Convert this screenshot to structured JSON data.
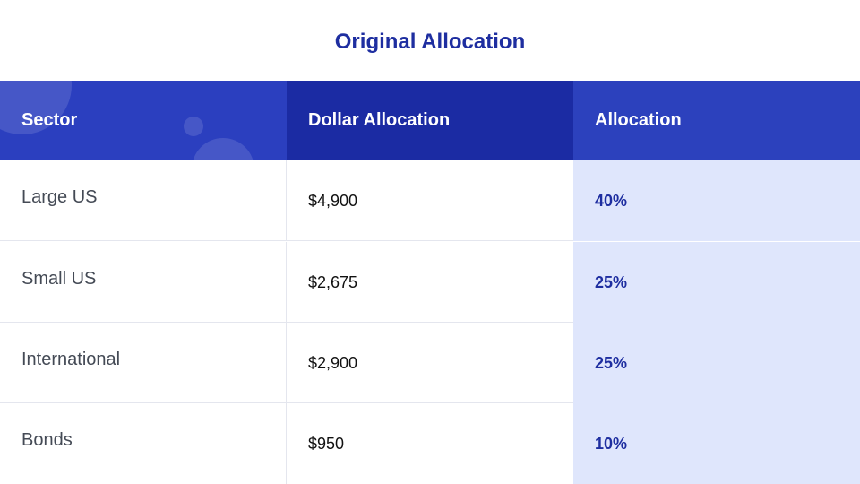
{
  "title": "Original Allocation",
  "table": {
    "headers": [
      "Sector",
      "Dollar Allocation",
      "Allocation"
    ],
    "rows": [
      {
        "sector": "Large US",
        "dollar": "$4,900",
        "allocation": "40%"
      },
      {
        "sector": "Small US",
        "dollar": "$2,675",
        "allocation": "25%"
      },
      {
        "sector": "International",
        "dollar": "$2,900",
        "allocation": "25%"
      },
      {
        "sector": "Bonds",
        "dollar": "$950",
        "allocation": "10%"
      }
    ]
  },
  "colors": {
    "title": "#1e2ea0",
    "header_sector": "#2b3fbf",
    "header_dollar": "#1b2ba3",
    "header_allocation": "#2c41bd",
    "allocation_column_bg": "#dfe6fc"
  }
}
